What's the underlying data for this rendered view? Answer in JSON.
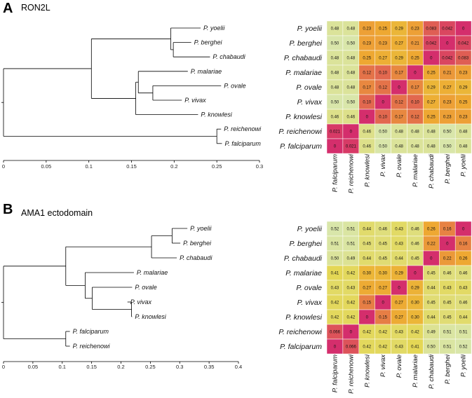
{
  "chart_data": [
    {
      "type": "tree",
      "panel_letter": "A",
      "title": "RON2L",
      "xlim": [
        0,
        0.3
      ],
      "xticks": [
        0,
        0.05,
        0.1,
        0.15,
        0.2,
        0.25,
        0.3
      ],
      "tick_labels": [
        "0",
        "0.05",
        "0.1",
        "0.15",
        "0.2",
        "0.25",
        "0.3"
      ],
      "leaves": [
        {
          "label": "P. yoelii",
          "x": 0.231
        },
        {
          "label": "P. berghei",
          "x": 0.22
        },
        {
          "label": "P. chabaudi",
          "x": 0.242
        },
        {
          "label": "P. malariae",
          "x": 0.216
        },
        {
          "label": "P. ovale",
          "x": 0.255
        },
        {
          "label": "P. vivax",
          "x": 0.209
        },
        {
          "label": "P. knowlesi",
          "x": 0.228
        },
        {
          "label": "P. reichenowi",
          "x": 0.255
        },
        {
          "label": "P. falciparum",
          "x": 0.256
        }
      ],
      "nodes": [
        {
          "x": 0.199,
          "children": [
            1,
            2
          ]
        },
        {
          "x": 0.196,
          "children": [
            0,
            "n0"
          ]
        },
        {
          "x": 0.175,
          "children": [
            4,
            5
          ]
        },
        {
          "x": 0.158,
          "children": [
            3,
            "n2"
          ]
        },
        {
          "x": 0.155,
          "children": [
            "n3",
            6
          ]
        },
        {
          "x": 0.103,
          "children": [
            "n1",
            "n4"
          ]
        },
        {
          "x": 0.25,
          "children": [
            7,
            8
          ]
        },
        {
          "x": 0.0,
          "children": [
            "n5",
            "n6"
          ]
        }
      ]
    },
    {
      "type": "heatmap",
      "panel_letter": "A",
      "rows": [
        "P. yoelii",
        "P. berghei",
        "P. chabaudi",
        "P. malariae",
        "P. ovale",
        "P. vivax",
        "P. knowlesi",
        "P. reichenowi",
        "P. falciparum"
      ],
      "columns": [
        "P. falciparum",
        "P. reichenowi",
        "P. knowlesi",
        "P. vivax",
        "P. ovale",
        "P. malariae",
        "P. chabaudi",
        "P. berghei",
        "P. yoelii"
      ],
      "values": [
        [
          "0.48",
          "0.48",
          "0.23",
          "0.25",
          "0.29",
          "0.23",
          "0.083",
          "0.042",
          "0"
        ],
        [
          "0.50",
          "0.50",
          "0.23",
          "0.23",
          "0.27",
          "0.21",
          "0.042",
          "0",
          "0.042"
        ],
        [
          "0.48",
          "0.48",
          "0.25",
          "0.27",
          "0.29",
          "0.25",
          "0",
          "0.042",
          "0.083"
        ],
        [
          "0.48",
          "0.48",
          "0.12",
          "0.10",
          "0.17",
          "0",
          "0.25",
          "0.21",
          "0.23"
        ],
        [
          "0.48",
          "0.48",
          "0.17",
          "0.12",
          "0",
          "0.17",
          "0.29",
          "0.27",
          "0.29"
        ],
        [
          "0.50",
          "0.50",
          "0.10",
          "0",
          "0.12",
          "0.10",
          "0.27",
          "0.23",
          "0.25"
        ],
        [
          "0.46",
          "0.46",
          "0",
          "0.10",
          "0.17",
          "0.12",
          "0.25",
          "0.23",
          "0.23"
        ],
        [
          "0.021",
          "0",
          "0.46",
          "0.50",
          "0.48",
          "0.48",
          "0.48",
          "0.50",
          "0.48"
        ],
        [
          "0",
          "0.021",
          "0.46",
          "0.50",
          "0.48",
          "0.48",
          "0.48",
          "0.50",
          "0.48"
        ]
      ]
    },
    {
      "type": "tree",
      "panel_letter": "B",
      "title": "AMA1 ectodomain",
      "xlim": [
        0,
        0.4
      ],
      "xticks": [
        0,
        0.05,
        0.1,
        0.15,
        0.2,
        0.25,
        0.3,
        0.35,
        0.4
      ],
      "tick_labels": [
        "0",
        "0.05",
        "0.1",
        "0.15",
        "0.2",
        "0.25",
        "0.3",
        "0.35",
        "0.4"
      ],
      "leaves": [
        {
          "label": "P. yoelii",
          "x": 0.313
        },
        {
          "label": "P. berghei",
          "x": 0.301
        },
        {
          "label": "P. chabaudi",
          "x": 0.295
        },
        {
          "label": "P. malariae",
          "x": 0.222
        },
        {
          "label": "P. ovale",
          "x": 0.219
        },
        {
          "label": "P. vivax",
          "x": 0.211
        },
        {
          "label": "P. knowlesi",
          "x": 0.219
        },
        {
          "label": "P. falciparum",
          "x": 0.113
        },
        {
          "label": "P. reichenowi",
          "x": 0.113
        }
      ],
      "nodes": [
        {
          "x": 0.287,
          "children": [
            0,
            1
          ]
        },
        {
          "x": 0.252,
          "children": [
            "n0",
            2
          ]
        },
        {
          "x": 0.218,
          "children": [
            5,
            6
          ]
        },
        {
          "x": 0.151,
          "children": [
            4,
            "n2"
          ]
        },
        {
          "x": 0.139,
          "children": [
            3,
            "n3"
          ]
        },
        {
          "x": 0.106,
          "children": [
            "n1",
            "n4"
          ]
        },
        {
          "x": 0.106,
          "children": [
            7,
            8
          ]
        },
        {
          "x": 0.0,
          "children": [
            "n5",
            "n6"
          ]
        }
      ]
    },
    {
      "type": "heatmap",
      "panel_letter": "B",
      "rows": [
        "P. yoelii",
        "P. berghei",
        "P. chabaudi",
        "P. malariae",
        "P. ovale",
        "P. vivax",
        "P. knowlesi",
        "P. reichenowi",
        "P. falciparum"
      ],
      "columns": [
        "P. falciparum",
        "P. reichenowi",
        "P. knowlesi",
        "P. vivax",
        "P. ovale",
        "P. malariae",
        "P. chabaudi",
        "P. berghei",
        "P. yoelii"
      ],
      "values": [
        [
          "0.52",
          "0.51",
          "0.44",
          "0.46",
          "0.43",
          "0.46",
          "0.26",
          "0.16",
          "0"
        ],
        [
          "0.51",
          "0.51",
          "0.45",
          "0.45",
          "0.43",
          "0.46",
          "0.22",
          "0",
          "0.16"
        ],
        [
          "0.50",
          "0.49",
          "0.44",
          "0.45",
          "0.44",
          "0.45",
          "0",
          "0.22",
          "0.26"
        ],
        [
          "0.41",
          "0.42",
          "0.30",
          "0.30",
          "0.29",
          "0",
          "0.45",
          "0.46",
          "0.46"
        ],
        [
          "0.43",
          "0.43",
          "0.27",
          "0.27",
          "0",
          "0.29",
          "0.44",
          "0.43",
          "0.43"
        ],
        [
          "0.42",
          "0.42",
          "0.15",
          "0",
          "0.27",
          "0.30",
          "0.45",
          "0.45",
          "0.46"
        ],
        [
          "0.42",
          "0.42",
          "0",
          "0.15",
          "0.27",
          "0.30",
          "0.44",
          "0.45",
          "0.44"
        ],
        [
          "0.066",
          "0",
          "0.42",
          "0.42",
          "0.43",
          "0.42",
          "0.49",
          "0.51",
          "0.51"
        ],
        [
          "0",
          "0.066",
          "0.42",
          "0.42",
          "0.43",
          "0.41",
          "0.50",
          "0.51",
          "0.52"
        ]
      ]
    }
  ]
}
